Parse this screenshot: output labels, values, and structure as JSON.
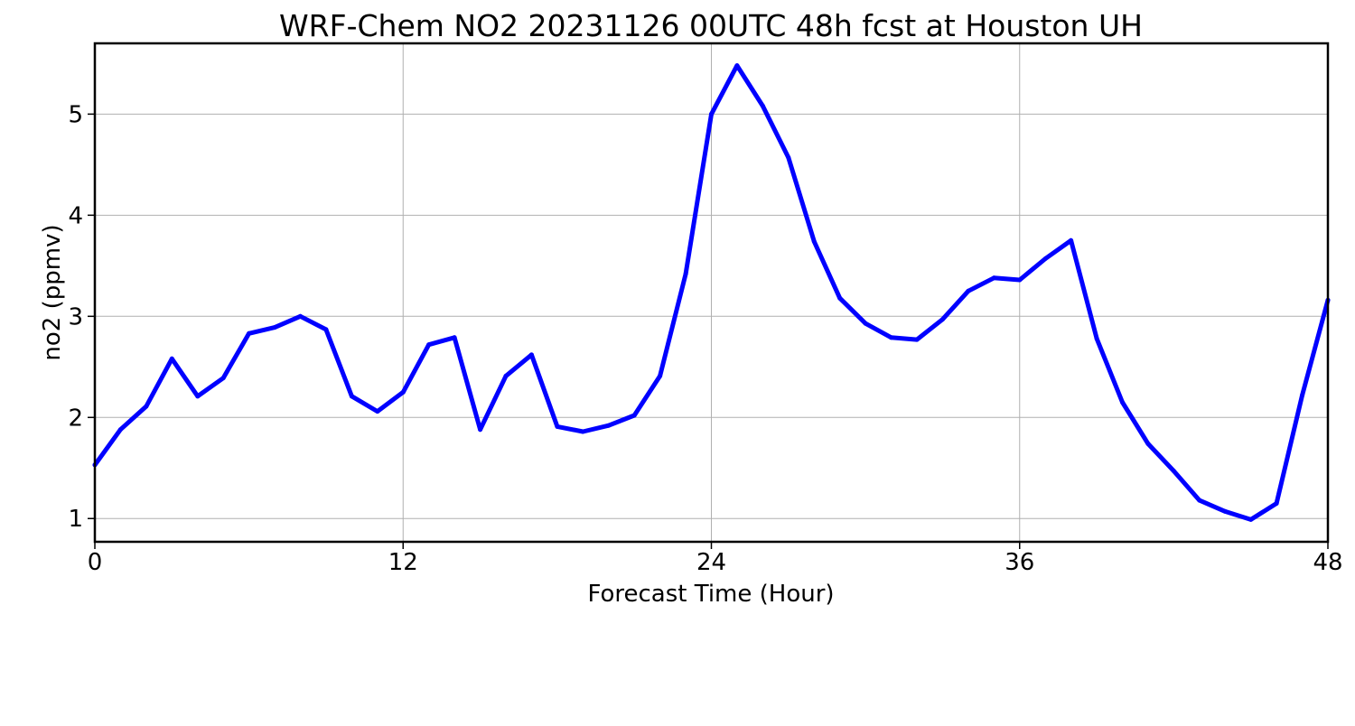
{
  "chart_data": {
    "type": "line",
    "title": "WRF-Chem NO2  20231126 00UTC 48h fcst at Houston UH",
    "xlabel": "Forecast Time (Hour)",
    "ylabel": "no2  (ppmv)",
    "xlim": [
      0,
      48
    ],
    "ylim": [
      0.77,
      5.7
    ],
    "xticks": [
      0,
      12,
      24,
      36,
      48
    ],
    "yticks": [
      1,
      2,
      3,
      4,
      5
    ],
    "grid": true,
    "series": [
      {
        "color": "#0000ff",
        "x": [
          0,
          1,
          2,
          3,
          4,
          5,
          6,
          7,
          8,
          9,
          10,
          11,
          12,
          13,
          14,
          15,
          16,
          17,
          18,
          19,
          20,
          21,
          22,
          23,
          24,
          25,
          26,
          27,
          28,
          29,
          30,
          31,
          32,
          33,
          34,
          35,
          36,
          37,
          38,
          39,
          40,
          41,
          42,
          43,
          44,
          45,
          46,
          47,
          48
        ],
        "values": [
          1.53,
          1.88,
          2.11,
          2.58,
          2.21,
          2.39,
          2.83,
          2.89,
          3.0,
          2.87,
          2.21,
          2.06,
          2.25,
          2.72,
          2.79,
          1.88,
          2.41,
          2.62,
          1.91,
          1.86,
          1.92,
          2.02,
          2.41,
          3.42,
          5.0,
          5.48,
          5.08,
          4.57,
          3.74,
          3.18,
          2.93,
          2.79,
          2.77,
          2.97,
          3.25,
          3.38,
          3.36,
          3.57,
          3.75,
          2.78,
          2.15,
          1.74,
          1.47,
          1.18,
          1.07,
          0.99,
          1.15,
          2.22,
          3.16
        ]
      }
    ]
  }
}
